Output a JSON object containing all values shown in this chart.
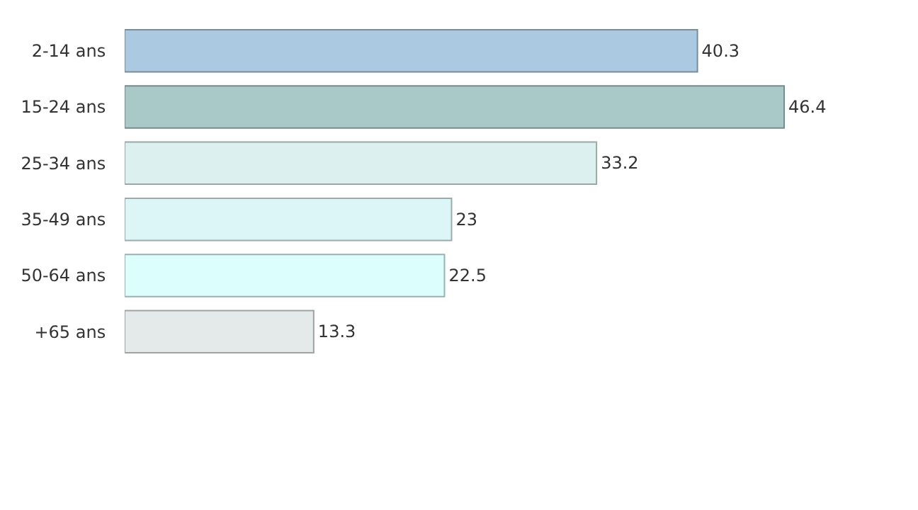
{
  "chart_data": {
    "type": "bar",
    "orientation": "horizontal",
    "categories": [
      "2-14 ans",
      "15-24 ans",
      "25-34 ans",
      "35-49 ans",
      "50-64 ans",
      "+65 ans"
    ],
    "values": [
      40.3,
      46.4,
      33.2,
      23,
      22.5,
      13.3
    ],
    "colors": [
      "#abcae2",
      "#a8c9c7",
      "#ddf0f0",
      "#dcf6f7",
      "#dcfefd",
      "#e4e9e9"
    ],
    "data_labels": true
  }
}
